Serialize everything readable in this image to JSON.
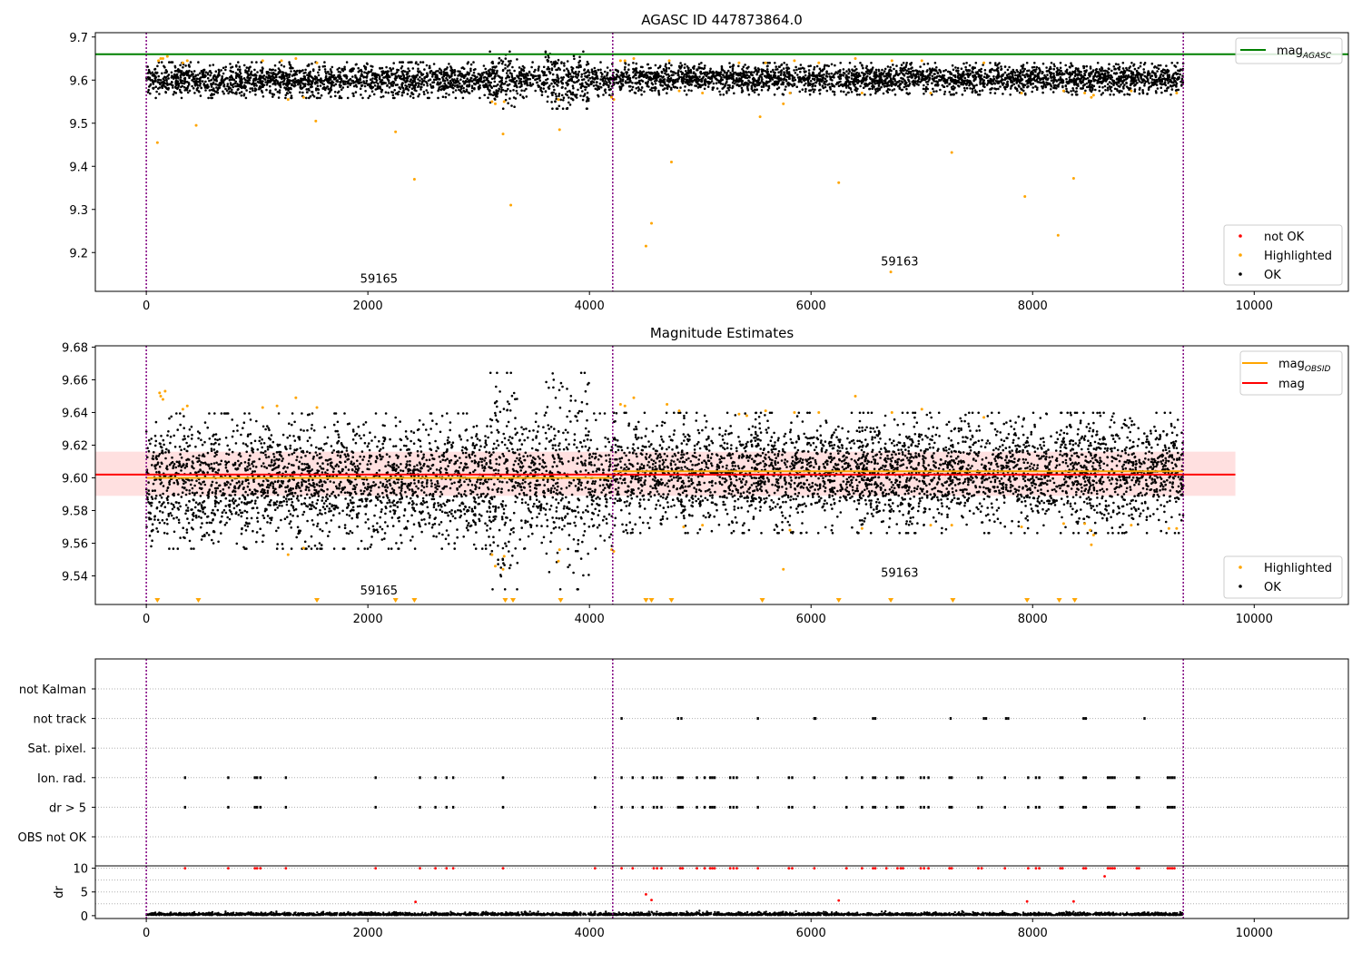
{
  "figure": {
    "title_top": "AGASC ID 447873864.0",
    "title_mid": "Magnitude Estimates"
  },
  "chart_data": [
    {
      "type": "scatter",
      "title": "AGASC ID 447873864.0",
      "xlabel": "",
      "ylabel": "",
      "xlim": [
        -460,
        10850
      ],
      "ylim": [
        9.11,
        9.71
      ],
      "xticks": [
        0,
        2000,
        4000,
        6000,
        8000,
        10000
      ],
      "xtick_labels": [
        "0",
        "2000",
        "4000",
        "6000",
        "8000",
        "10000"
      ],
      "yticks": [
        9.2,
        9.3,
        9.4,
        9.5,
        9.6,
        9.7
      ],
      "ytick_labels": [
        "9.2",
        "9.3",
        "9.4",
        "9.5",
        "9.6",
        "9.7"
      ],
      "grid": false,
      "legend_upper": {
        "placement": "top-right",
        "entries": [
          {
            "label": "mag",
            "subscript": "AGASC",
            "color": "#008000",
            "kind": "line"
          }
        ]
      },
      "legend_lower": {
        "placement": "bottom-right",
        "entries": [
          {
            "label": "not OK",
            "color": "#ff0000",
            "kind": "point"
          },
          {
            "label": "Highlighted",
            "color": "#ffa500",
            "kind": "point"
          },
          {
            "label": "OK",
            "color": "#000000",
            "kind": "point"
          }
        ]
      },
      "reference_lines": [
        {
          "name": "mag_AGASC",
          "y": 9.66,
          "color": "#008000"
        }
      ],
      "observation_boundaries_x": [
        0,
        4210,
        9360
      ],
      "observation_labels": [
        {
          "text": "59165",
          "x": 2100,
          "y": 9.13
        },
        {
          "text": "59163",
          "x": 6800,
          "y": 9.17
        }
      ],
      "ok_band": {
        "segments": [
          {
            "x0": 0,
            "x1": 4210,
            "center": 9.6,
            "halfwidth": 0.018,
            "dip": [
              [
                3100,
                3350
              ],
              [
                3600,
                4000
              ]
            ]
          },
          {
            "x0": 4210,
            "x1": 9360,
            "center": 9.603,
            "halfwidth": 0.016
          }
        ]
      },
      "highlighted_points": [
        [
          100,
          9.455
        ],
        [
          110,
          9.645
        ],
        [
          130,
          9.65
        ],
        [
          150,
          9.65
        ],
        [
          190,
          9.655
        ],
        [
          330,
          9.64
        ],
        [
          370,
          9.645
        ],
        [
          450,
          9.495
        ],
        [
          1050,
          9.645
        ],
        [
          1220,
          9.645
        ],
        [
          1280,
          9.555
        ],
        [
          1350,
          9.65
        ],
        [
          1420,
          9.56
        ],
        [
          1530,
          9.505
        ],
        [
          1540,
          9.64
        ],
        [
          2250,
          9.48
        ],
        [
          2420,
          9.37
        ],
        [
          3120,
          9.55
        ],
        [
          3150,
          9.545
        ],
        [
          3220,
          9.475
        ],
        [
          3230,
          9.55
        ],
        [
          3290,
          9.31
        ],
        [
          3720,
          9.555
        ],
        [
          3730,
          9.485
        ],
        [
          4200,
          9.56
        ],
        [
          4220,
          9.555
        ],
        [
          4280,
          9.645
        ],
        [
          4320,
          9.645
        ],
        [
          4400,
          9.65
        ],
        [
          4510,
          9.215
        ],
        [
          4560,
          9.268
        ],
        [
          4720,
          9.645
        ],
        [
          4740,
          9.41
        ],
        [
          4810,
          9.575
        ],
        [
          5020,
          9.57
        ],
        [
          5350,
          9.64
        ],
        [
          5540,
          9.515
        ],
        [
          5590,
          9.64
        ],
        [
          5750,
          9.545
        ],
        [
          5810,
          9.57
        ],
        [
          5850,
          9.645
        ],
        [
          6070,
          9.64
        ],
        [
          6250,
          9.362
        ],
        [
          6400,
          9.65
        ],
        [
          6460,
          9.57
        ],
        [
          6720,
          9.155
        ],
        [
          6730,
          9.645
        ],
        [
          7000,
          9.645
        ],
        [
          7080,
          9.57
        ],
        [
          7270,
          9.432
        ],
        [
          7560,
          9.64
        ],
        [
          7900,
          9.57
        ],
        [
          7930,
          9.33
        ],
        [
          8230,
          9.24
        ],
        [
          8280,
          9.575
        ],
        [
          8370,
          9.372
        ],
        [
          8470,
          9.57
        ],
        [
          8530,
          9.56
        ],
        [
          8550,
          9.565
        ],
        [
          8890,
          9.575
        ],
        [
          9300,
          9.57
        ]
      ],
      "not_ok_points": []
    },
    {
      "type": "scatter",
      "title": "Magnitude Estimates",
      "xlabel": "",
      "ylabel": "",
      "xlim": [
        -460,
        10850
      ],
      "ylim": [
        9.5225,
        9.6808
      ],
      "xticks": [
        0,
        2000,
        4000,
        6000,
        8000,
        10000
      ],
      "xtick_labels": [
        "0",
        "2000",
        "4000",
        "6000",
        "8000",
        "10000"
      ],
      "yticks": [
        9.54,
        9.56,
        9.58,
        9.6,
        9.62,
        9.64,
        9.66,
        9.68
      ],
      "ytick_labels": [
        "9.54",
        "9.56",
        "9.58",
        "9.60",
        "9.62",
        "9.64",
        "9.66",
        "9.68"
      ],
      "grid": false,
      "legend_upper": {
        "placement": "top-right",
        "entries": [
          {
            "label": "mag",
            "subscript": "OBSID",
            "color": "#ffa500",
            "kind": "line"
          },
          {
            "label": "mag",
            "subscript": "",
            "color": "#ff0000",
            "kind": "line"
          }
        ]
      },
      "legend_lower": {
        "placement": "bottom-right",
        "entries": [
          {
            "label": "Highlighted",
            "color": "#ffa500",
            "kind": "point"
          },
          {
            "label": "OK",
            "color": "#000000",
            "kind": "point"
          }
        ]
      },
      "mag_line": {
        "y": 9.602,
        "x0": -460,
        "x1": 9830,
        "band_low": 9.589,
        "band_high": 9.616,
        "color": "#ff0000"
      },
      "mag_obsid": [
        {
          "x0": 0,
          "x1": 4210,
          "y": 9.6
        },
        {
          "x0": 4210,
          "x1": 9360,
          "y": 9.604
        }
      ],
      "observation_boundaries_x": [
        0,
        4210,
        9360
      ],
      "observation_labels": [
        {
          "text": "59165",
          "x": 2100,
          "y": 9.5285
        },
        {
          "text": "59163",
          "x": 6800,
          "y": 9.5395
        }
      ],
      "ok_band": {
        "segments": [
          {
            "x0": 0,
            "x1": 4210,
            "center": 9.598,
            "halfwidth": 0.018,
            "dip": [
              [
                3100,
                3350
              ],
              [
                3600,
                4000
              ]
            ]
          },
          {
            "x0": 4210,
            "x1": 9360,
            "center": 9.603,
            "halfwidth": 0.016
          }
        ]
      },
      "highlighted_points": [
        [
          120,
          9.652
        ],
        [
          130,
          9.65
        ],
        [
          150,
          9.648
        ],
        [
          170,
          9.653
        ],
        [
          330,
          9.642
        ],
        [
          370,
          9.644
        ],
        [
          1050,
          9.643
        ],
        [
          1180,
          9.644
        ],
        [
          1280,
          9.553
        ],
        [
          1350,
          9.649
        ],
        [
          1420,
          9.557
        ],
        [
          1540,
          9.643
        ],
        [
          3120,
          9.553
        ],
        [
          3150,
          9.546
        ],
        [
          3220,
          9.544
        ],
        [
          3230,
          9.552
        ],
        [
          3720,
          9.549
        ],
        [
          3730,
          9.556
        ],
        [
          4200,
          9.556
        ],
        [
          4220,
          9.555
        ],
        [
          4280,
          9.645
        ],
        [
          4320,
          9.644
        ],
        [
          4400,
          9.649
        ],
        [
          4700,
          9.645
        ],
        [
          4810,
          9.641
        ],
        [
          4850,
          9.57
        ],
        [
          5020,
          9.571
        ],
        [
          5350,
          9.639
        ],
        [
          5420,
          9.638
        ],
        [
          5590,
          9.641
        ],
        [
          5750,
          9.544
        ],
        [
          5810,
          9.568
        ],
        [
          5850,
          9.64
        ],
        [
          6070,
          9.64
        ],
        [
          6400,
          9.65
        ],
        [
          6460,
          9.569
        ],
        [
          6730,
          9.64
        ],
        [
          7000,
          9.642
        ],
        [
          7080,
          9.571
        ],
        [
          7270,
          9.571
        ],
        [
          7560,
          9.637
        ],
        [
          7900,
          9.57
        ],
        [
          8280,
          9.572
        ],
        [
          8470,
          9.572
        ],
        [
          8520,
          9.568
        ],
        [
          8530,
          9.559
        ],
        [
          8550,
          9.565
        ],
        [
          8890,
          9.571
        ],
        [
          9230,
          9.569
        ],
        [
          9300,
          9.569
        ]
      ],
      "offscale_markers_x": [
        100,
        470,
        1540,
        2250,
        2420,
        3240,
        3310,
        3740,
        4510,
        4560,
        4740,
        5560,
        6250,
        6720,
        7280,
        7950,
        8240,
        8380
      ]
    },
    {
      "type": "scatter",
      "title": "",
      "xlabel": "",
      "ylabel": "",
      "xlim": [
        -460,
        10850
      ],
      "categories": [
        "OBS not OK",
        "dr > 5",
        "Ion. rad.",
        "Sat. pixel.",
        "not track",
        "not Kalman"
      ],
      "grid": true,
      "observation_boundaries_x": [
        0,
        4210,
        9360
      ],
      "flags": {
        "not Kalman": [],
        "not track": [
          4290,
          4800,
          4830,
          5520,
          6030,
          6040,
          6560,
          6580,
          7260,
          7560,
          7580,
          7760,
          7780,
          8460,
          8480,
          9010
        ],
        "Sat. pixel.": [],
        "Ion. rad.": [
          350,
          740,
          980,
          1000,
          1030,
          1260,
          2070,
          2470,
          2610,
          2710,
          2770,
          3220,
          4050,
          4290,
          4390,
          4480,
          4580,
          4610,
          4650,
          4800,
          4820,
          4840,
          4970,
          5040,
          5090,
          5110,
          5130,
          5270,
          5300,
          5330,
          5520,
          5800,
          5830,
          6030,
          6320,
          6460,
          6560,
          6580,
          6680,
          6780,
          6810,
          6830,
          6990,
          7020,
          7060,
          7250,
          7270,
          7510,
          7540,
          7750,
          7960,
          8030,
          8060,
          8250,
          8270,
          8460,
          8480,
          8680,
          8700,
          8720,
          8740,
          8940,
          8960,
          9220,
          9240,
          9260,
          9280
        ],
        "dr > 5": [
          350,
          740,
          980,
          1000,
          1030,
          1260,
          2070,
          2470,
          2610,
          2710,
          2770,
          3220,
          4050,
          4290,
          4390,
          4480,
          4580,
          4610,
          4650,
          4800,
          4820,
          4840,
          4970,
          5040,
          5090,
          5110,
          5130,
          5270,
          5300,
          5330,
          5520,
          5800,
          5830,
          6030,
          6320,
          6460,
          6560,
          6580,
          6680,
          6780,
          6810,
          6830,
          6990,
          7020,
          7060,
          7250,
          7270,
          7510,
          7540,
          7750,
          7960,
          8030,
          8060,
          8250,
          8270,
          8460,
          8480,
          8680,
          8700,
          8720,
          8740,
          8940,
          8960,
          9220,
          9240,
          9260,
          9280
        ],
        "OBS not OK": []
      }
    },
    {
      "type": "scatter",
      "title": "",
      "xlabel": "",
      "ylabel": "dr",
      "xlim": [
        -460,
        10850
      ],
      "ylim": [
        -0.6,
        10.5
      ],
      "xticks": [
        0,
        2000,
        4000,
        6000,
        8000,
        10000
      ],
      "xtick_labels": [
        "0",
        "2000",
        "4000",
        "6000",
        "8000",
        "10000"
      ],
      "yticks": [
        0,
        5,
        10
      ],
      "ytick_labels": [
        "0",
        "5",
        "10"
      ],
      "grid": true,
      "observation_boundaries_x": [
        0,
        4210,
        9360
      ],
      "clipped_at_10_x": [
        350,
        740,
        980,
        1000,
        1030,
        1260,
        2070,
        2470,
        2610,
        2710,
        2770,
        3220,
        4050,
        4290,
        4390,
        4580,
        4610,
        4650,
        4820,
        4840,
        4970,
        5040,
        5090,
        5110,
        5130,
        5270,
        5300,
        5330,
        5520,
        5800,
        5830,
        6030,
        6320,
        6460,
        6560,
        6580,
        6680,
        6780,
        6810,
        6830,
        6990,
        7020,
        7060,
        7250,
        7270,
        7510,
        7540,
        7750,
        7960,
        8030,
        8060,
        8250,
        8270,
        8460,
        8480,
        8680,
        8700,
        8720,
        8740,
        8940,
        8960,
        9220,
        9240,
        9260,
        9280
      ],
      "not_ok_points": [
        [
          2430,
          2.9
        ],
        [
          4510,
          4.5
        ],
        [
          4560,
          3.3
        ],
        [
          6250,
          3.2
        ],
        [
          7950,
          3.0
        ],
        [
          8370,
          3.0
        ],
        [
          8650,
          8.3
        ]
      ],
      "ok_median": 0.35
    }
  ],
  "colors": {
    "ok": "#000000",
    "highlighted": "#ffa500",
    "not_ok": "#ff0000",
    "agasc": "#008000",
    "boundary": "#800080",
    "band": "#ffdddd"
  }
}
